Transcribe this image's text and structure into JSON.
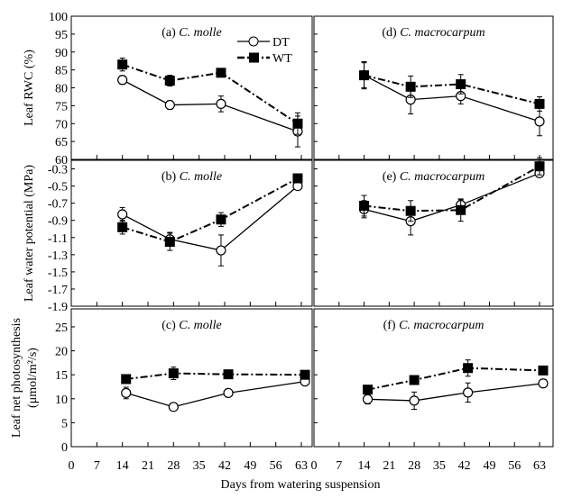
{
  "chart_data": [
    {
      "id": "a",
      "type": "line",
      "title_prefix": "(a) ",
      "title_species": "C. molle",
      "ylabel": "Leaf RWC (%)",
      "ylim": [
        60,
        100
      ],
      "yticks": [
        60,
        65,
        70,
        75,
        80,
        85,
        90,
        95,
        100
      ],
      "xlim": [
        0,
        63
      ],
      "series": [
        {
          "name": "DT",
          "x": [
            14,
            27,
            41,
            62
          ],
          "y": [
            82.2,
            75.2,
            75.5,
            67.8
          ],
          "err": [
            1.2,
            1.2,
            2.2,
            4.3
          ]
        },
        {
          "name": "WT",
          "x": [
            14,
            27,
            41,
            62
          ],
          "y": [
            86.5,
            82.0,
            84.2,
            70.0
          ],
          "err": [
            1.8,
            1.5,
            0.8,
            3.0
          ]
        }
      ]
    },
    {
      "id": "d",
      "type": "line",
      "title_prefix": "(d) ",
      "title_species": "C. macrocarpum",
      "ylim": [
        60,
        100
      ],
      "xlim": [
        0,
        63
      ],
      "series": [
        {
          "name": "DT",
          "x": [
            14,
            27,
            41,
            63
          ],
          "y": [
            83.5,
            76.7,
            77.7,
            70.6
          ],
          "err": [
            3.5,
            4.0,
            2.2,
            4.0
          ]
        },
        {
          "name": "WT",
          "x": [
            14,
            27,
            41,
            63
          ],
          "y": [
            83.5,
            80.3,
            81.0,
            75.5
          ],
          "err": [
            3.8,
            3.0,
            2.7,
            2.0
          ]
        }
      ]
    },
    {
      "id": "b",
      "type": "line",
      "title_prefix": "(b) ",
      "title_species": "C. molle",
      "ylabel": "Leaf water potential (MPa)",
      "ylim": [
        -1.9,
        -0.2
      ],
      "yticks": [
        -0.3,
        -0.5,
        -0.7,
        -0.9,
        -1.1,
        -1.3,
        -1.5,
        -1.7,
        -1.9
      ],
      "xlim": [
        0,
        63
      ],
      "series": [
        {
          "name": "DT",
          "x": [
            14,
            27,
            41,
            62
          ],
          "y": [
            -0.83,
            -1.12,
            -1.25,
            -0.5
          ],
          "err": [
            0.08,
            0.08,
            0.18,
            0.02
          ]
        },
        {
          "name": "WT",
          "x": [
            14,
            27,
            41,
            62
          ],
          "y": [
            -0.98,
            -1.15,
            -0.89,
            -0.41
          ],
          "err": [
            0.08,
            0.1,
            0.08,
            0.02
          ]
        }
      ]
    },
    {
      "id": "e",
      "type": "line",
      "title_prefix": "(e) ",
      "title_species": "C. macrocarpum",
      "ylim": [
        -1.9,
        -0.2
      ],
      "xlim": [
        0,
        63
      ],
      "series": [
        {
          "name": "DT",
          "x": [
            14,
            27,
            41,
            63
          ],
          "y": [
            -0.77,
            -0.91,
            -0.72,
            -0.35
          ],
          "err": [
            0.1,
            0.16,
            0.06,
            0.04
          ]
        },
        {
          "name": "WT",
          "x": [
            14,
            27,
            41,
            63
          ],
          "y": [
            -0.73,
            -0.79,
            -0.78,
            -0.27
          ],
          "err": [
            0.12,
            0.12,
            0.13,
            0.1
          ]
        }
      ]
    },
    {
      "id": "c",
      "type": "line",
      "title_prefix": "(c) ",
      "title_species": "C. molle",
      "ylabel": "Leaf net photosynthesis",
      "ylabel2": "(μmol/m²/s)",
      "ylim": [
        0,
        28.75
      ],
      "yticks": [
        0,
        5,
        10,
        15,
        20,
        25
      ],
      "xlim": [
        0,
        63
      ],
      "xticks": [
        0,
        7,
        14,
        21,
        28,
        35,
        42,
        49,
        56,
        63
      ],
      "series": [
        {
          "name": "DT",
          "x": [
            15,
            28,
            43,
            64
          ],
          "y": [
            11.2,
            8.3,
            11.2,
            13.6
          ],
          "err": [
            1.2,
            0.7,
            0.8,
            0.6
          ]
        },
        {
          "name": "WT",
          "x": [
            15,
            28,
            43,
            64
          ],
          "y": [
            14.1,
            15.3,
            15.1,
            15.0
          ],
          "err": [
            0.5,
            1.3,
            0.5,
            0.4
          ]
        }
      ]
    },
    {
      "id": "f",
      "type": "line",
      "title_prefix": "(f) ",
      "title_species": "C. macrocarpum",
      "ylim": [
        0,
        28.75
      ],
      "xlim": [
        0,
        63
      ],
      "xticks": [
        0,
        7,
        14,
        21,
        28,
        35,
        42,
        49,
        56,
        63
      ],
      "series": [
        {
          "name": "DT",
          "x": [
            15,
            28,
            43,
            64
          ],
          "y": [
            9.9,
            9.6,
            11.3,
            13.2
          ],
          "err": [
            1.0,
            1.8,
            2.0,
            0.6
          ]
        },
        {
          "name": "WT",
          "x": [
            15,
            28,
            43,
            64
          ],
          "y": [
            11.9,
            13.9,
            16.4,
            15.9
          ],
          "err": [
            0.5,
            0.5,
            1.7,
            0.5
          ]
        }
      ]
    }
  ],
  "legend": {
    "position": "top-right of panel (a)",
    "items": [
      "DT",
      "WT"
    ]
  },
  "xlabel": "Days from watering suspension"
}
